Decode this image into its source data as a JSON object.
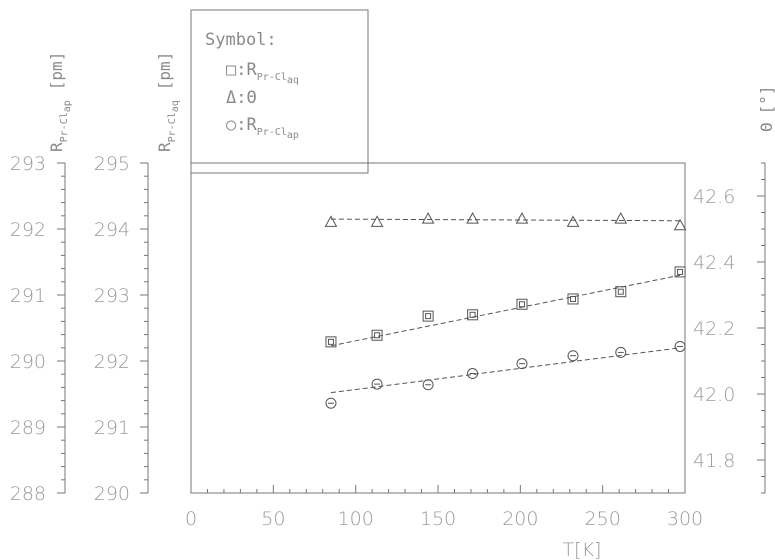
{
  "legend": {
    "title": "Symbol:",
    "entries": [
      {
        "symbol": "square",
        "prefix": "□:R",
        "sub": "Pr-Cl",
        "subsub": "aq"
      },
      {
        "symbol": "triangle",
        "prefix": "Δ:Θ",
        "sub": "",
        "subsub": ""
      },
      {
        "symbol": "circle",
        "prefix": "○:R",
        "sub": "Pr-Cl",
        "subsub": "ap"
      }
    ]
  },
  "axes": {
    "ap": {
      "label_main": "R",
      "label_sub": "Pr-Cl",
      "label_subsub": "ap",
      "unit": "[pm]",
      "ticks": [
        "288",
        "289",
        "290",
        "291",
        "292",
        "293"
      ]
    },
    "aq": {
      "label_main": "R",
      "label_sub": "Pr-Cl",
      "label_subsub": "aq",
      "unit": "[pm]",
      "ticks": [
        "290",
        "291",
        "292",
        "293",
        "294",
        "295"
      ]
    },
    "theta": {
      "label_main": "Θ",
      "unit": "[°]",
      "ticks": [
        "41.8",
        "42.0",
        "42.2",
        "42.4",
        "42.6"
      ]
    },
    "x": {
      "label": "T[K]",
      "ticks": [
        "0",
        "50",
        "100",
        "150",
        "200",
        "250",
        "300"
      ]
    }
  },
  "chart_data": {
    "type": "scatter",
    "xlabel": "T[K]",
    "xlim": [
      0,
      300
    ],
    "axes": [
      {
        "name": "R_Pr-Cl_ap",
        "unit": "[pm]",
        "lim": [
          288,
          293
        ]
      },
      {
        "name": "R_Pr-Cl_aq",
        "unit": "[pm]",
        "lim": [
          290,
          295
        ]
      },
      {
        "name": "Θ",
        "unit": "[°]",
        "lim": [
          41.7,
          42.7
        ]
      }
    ],
    "series": [
      {
        "name": "R_Pr-Cl_aq",
        "marker": "square",
        "axis": 1,
        "x": [
          85,
          113,
          144,
          171,
          201,
          232,
          261,
          297
        ],
        "y": [
          292.29,
          292.39,
          292.68,
          292.7,
          292.86,
          292.94,
          293.05,
          293.35
        ],
        "fit": [
          [
            85,
            292.23
          ],
          [
            297,
            293.3
          ]
        ]
      },
      {
        "name": "Θ",
        "marker": "triangle",
        "axis": 2,
        "x": [
          85,
          113,
          144,
          171,
          201,
          232,
          261,
          297
        ],
        "y": [
          42.52,
          42.52,
          42.53,
          42.53,
          42.53,
          42.52,
          42.53,
          42.51
        ],
        "fit": [
          [
            85,
            42.53
          ],
          [
            297,
            42.525
          ]
        ]
      },
      {
        "name": "R_Pr-Cl_ap",
        "marker": "circle",
        "axis": 0,
        "x": [
          85,
          113,
          144,
          171,
          201,
          232,
          261,
          297
        ],
        "y": [
          289.36,
          289.65,
          289.64,
          289.81,
          289.96,
          290.08,
          290.13,
          290.22
        ],
        "fit": [
          [
            85,
            289.52
          ],
          [
            297,
            290.2
          ]
        ]
      }
    ]
  }
}
